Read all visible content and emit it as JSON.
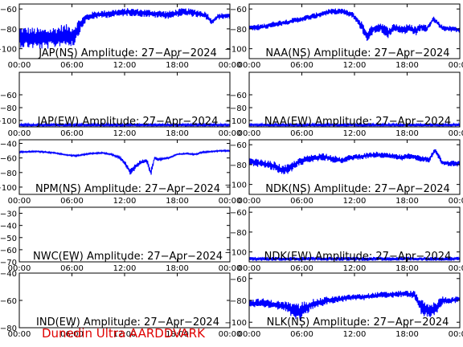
{
  "footer": "Dunedin Ultra AARDDVARK",
  "colors": {
    "trace": "#0000ff",
    "axis": "#000000",
    "footer": "#e00000"
  },
  "chart_data": [
    {
      "type": "line",
      "title": "JAP(NS) Amplitude: 27-Apr-2024",
      "xticks": [
        "00:00",
        "06:00",
        "12:00",
        "18:00",
        "00:00"
      ],
      "xlim": [
        0,
        24
      ],
      "ylim": [
        -110,
        -55
      ],
      "yticks": [
        -60,
        -80,
        -100
      ],
      "series": [
        {
          "x": [
            0,
            1.2,
            2.5,
            3.8,
            5,
            6.2,
            6.8,
            7.6,
            8.6,
            10,
            11.2,
            12.5,
            14,
            15.5,
            17,
            18.6,
            20,
            21.4,
            21.9,
            22.6,
            23.2,
            24
          ],
          "y": [
            -88,
            -89,
            -90,
            -89,
            -86,
            -87,
            -78,
            -69,
            -66,
            -65,
            -64,
            -63,
            -64,
            -65,
            -66,
            -63,
            -64,
            -67,
            -73,
            -68,
            -67,
            -67
          ],
          "band": [
            11,
            11,
            11,
            11,
            11,
            11,
            8,
            4,
            4,
            4,
            4,
            4,
            4,
            4,
            4,
            4,
            4,
            4,
            3,
            3,
            3,
            3
          ]
        }
      ]
    },
    {
      "type": "line",
      "title": "NAA(NS) Amplitude: 27-Apr-2024",
      "xticks": [
        "00:00",
        "06:00",
        "12:00",
        "18:00",
        "00:00"
      ],
      "xlim": [
        0,
        24
      ],
      "ylim": [
        -110,
        -55
      ],
      "yticks": [
        -60,
        -80,
        -100
      ],
      "series": [
        {
          "x": [
            0,
            1.5,
            3,
            4.5,
            6,
            7.5,
            9,
            10.5,
            11.8,
            12.8,
            13.4,
            14.2,
            15,
            15.8,
            16.6,
            17.4,
            18.2,
            19,
            19.6,
            20.2,
            21,
            22,
            23,
            24
          ],
          "y": [
            -79,
            -78,
            -75,
            -73,
            -70,
            -67,
            -63,
            -62,
            -66,
            -77,
            -87,
            -80,
            -78,
            -84,
            -79,
            -81,
            -80,
            -82,
            -78,
            -80,
            -70,
            -79,
            -80,
            -81
          ],
          "band": [
            3,
            3,
            3,
            3,
            3,
            3,
            3,
            3,
            3,
            5,
            6,
            5,
            5,
            6,
            5,
            5,
            5,
            5,
            4,
            4,
            3,
            3,
            3,
            3
          ]
        }
      ]
    },
    {
      "type": "line",
      "title": "JAP(EW) Amplitude: 27-Apr-2024",
      "xticks": [
        "00:00",
        "06:00",
        "12:00",
        "18:00",
        "00:00"
      ],
      "xlim": [
        0,
        24
      ],
      "ylim": [
        -110,
        -25
      ],
      "yticks": [
        -60,
        -80,
        -100
      ],
      "series": [
        {
          "x": [
            0,
            24
          ],
          "y": [
            -107,
            -107
          ],
          "band": [
            2,
            2
          ]
        }
      ]
    },
    {
      "type": "line",
      "title": "NAA(EW) Amplitude: 27-Apr-2024",
      "xticks": [
        "00:00",
        "06:00",
        "12:00",
        "18:00",
        "00:00"
      ],
      "xlim": [
        0,
        24
      ],
      "ylim": [
        -110,
        -25
      ],
      "yticks": [
        -60,
        -80,
        -100
      ],
      "series": [
        {
          "x": [
            0,
            24
          ],
          "y": [
            -107,
            -107
          ],
          "band": [
            2,
            2
          ]
        }
      ]
    },
    {
      "type": "line",
      "title": "NPM(NS) Amplitude: 27-Apr-2024",
      "xticks": [
        "00:00",
        "06:00",
        "12:00",
        "18:00",
        "00:00"
      ],
      "xlim": [
        0,
        24
      ],
      "ylim": [
        -110,
        -35
      ],
      "yticks": [
        -40,
        -60,
        -80,
        -100
      ],
      "series": [
        {
          "x": [
            0,
            2,
            4,
            5.5,
            6.5,
            8,
            9.5,
            10.5,
            11.5,
            12.2,
            12.7,
            13.2,
            13.8,
            14.5,
            15,
            15.4,
            15.8,
            16.4,
            17,
            18,
            19,
            20,
            21,
            22,
            23,
            24
          ],
          "y": [
            -52,
            -51,
            -53,
            -56,
            -57,
            -54,
            -53,
            -55,
            -60,
            -70,
            -80,
            -72,
            -66,
            -63,
            -80,
            -60,
            -62,
            -61,
            -60,
            -55,
            -54,
            -55,
            -52,
            -51,
            -50,
            -50
          ],
          "band": [
            1,
            1,
            1,
            1,
            1,
            1,
            1,
            1,
            2,
            4,
            5,
            4,
            3,
            3,
            6,
            2,
            2,
            1,
            1,
            1,
            1,
            1,
            1,
            1,
            1,
            1
          ]
        }
      ]
    },
    {
      "type": "line",
      "title": "NDK(NS) Amplitude: 27-Apr-2024",
      "xticks": [
        "00:00",
        "06:00",
        "12:00",
        "18:00",
        "00:00"
      ],
      "xlim": [
        0,
        24
      ],
      "ylim": [
        -110,
        -55
      ],
      "yticks": [
        -60,
        -80,
        -100
      ],
      "series": [
        {
          "x": [
            0,
            1.5,
            3,
            3.8,
            4.6,
            5.5,
            6.5,
            7.5,
            8.5,
            9.5,
            10.5,
            11.5,
            12.5,
            13.5,
            14.5,
            15.5,
            16.5,
            17.5,
            18.5,
            19.5,
            20.5,
            21.2,
            22,
            23,
            24
          ],
          "y": [
            -77,
            -79,
            -82,
            -86,
            -84,
            -78,
            -75,
            -73,
            -72,
            -74,
            -76,
            -73,
            -72,
            -71,
            -70,
            -71,
            -72,
            -73,
            -71,
            -74,
            -75,
            -65,
            -78,
            -79,
            -79
          ],
          "band": [
            4,
            4,
            5,
            5,
            5,
            4,
            4,
            4,
            4,
            4,
            3,
            3,
            3,
            3,
            3,
            3,
            3,
            3,
            3,
            3,
            3,
            3,
            3,
            3,
            3
          ]
        }
      ]
    },
    {
      "type": "line",
      "title": "NWC(EW) Amplitude: 27-Apr-2024",
      "xticks": [
        "00:00",
        "06:00",
        "12:00",
        "18:00",
        "00:00"
      ],
      "xlim": [
        0,
        24
      ],
      "ylim": [
        -70,
        -25
      ],
      "yticks": [
        -30,
        -40,
        -50,
        -60,
        -70
      ],
      "series": []
    },
    {
      "type": "line",
      "title": "NDK(EW) Amplitude: 27-Apr-2024",
      "xticks": [
        "00:00",
        "06:00",
        "12:00",
        "18:00",
        "00:00"
      ],
      "xlim": [
        0,
        24
      ],
      "ylim": [
        -110,
        -55
      ],
      "yticks": [
        -60,
        -80,
        -100
      ],
      "series": [
        {
          "x": [
            0,
            24
          ],
          "y": [
            -107,
            -107
          ],
          "band": [
            2,
            2
          ]
        }
      ]
    },
    {
      "type": "line",
      "title": "IND(EW) Amplitude: 27-Apr-2024",
      "xticks": [
        "00:00",
        "06:00",
        "12:00",
        "18:00",
        "00:00"
      ],
      "xlim": [
        0,
        24
      ],
      "ylim": [
        -80,
        -40
      ],
      "yticks": [
        -40,
        -60,
        -80
      ],
      "series": []
    },
    {
      "type": "line",
      "title": "NLK(NS) Amplitude: 27-Apr-2024",
      "xticks": [
        "00:00",
        "06:00",
        "12:00",
        "18:00",
        "00:00"
      ],
      "xlim": [
        0,
        24
      ],
      "ylim": [
        -105,
        -55
      ],
      "yticks": [
        -60,
        -80,
        -100
      ],
      "series": [
        {
          "x": [
            0,
            1.5,
            3,
            4.5,
            5.2,
            6,
            7,
            8,
            9,
            10,
            11,
            12,
            13,
            14,
            15,
            16,
            17,
            18,
            18.8,
            19.6,
            20.4,
            21.2,
            22,
            23,
            24
          ],
          "y": [
            -83,
            -82,
            -84,
            -86,
            -92,
            -90,
            -84,
            -82,
            -80,
            -79,
            -78,
            -77,
            -77,
            -76,
            -75,
            -75,
            -74,
            -74,
            -75,
            -86,
            -90,
            -88,
            -80,
            -80,
            -79
          ],
          "band": [
            4,
            4,
            4,
            5,
            9,
            9,
            5,
            4,
            4,
            3,
            3,
            3,
            3,
            3,
            3,
            3,
            3,
            3,
            4,
            7,
            7,
            7,
            4,
            3,
            3
          ]
        }
      ]
    }
  ]
}
